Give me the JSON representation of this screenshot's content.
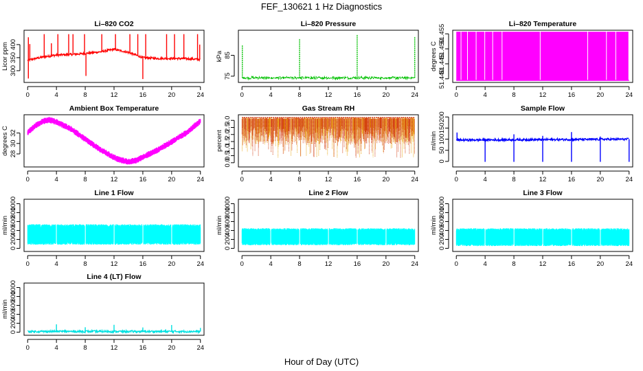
{
  "figure": {
    "title": "FEF_130621  1 Hz Diagnostics",
    "xlabel": "Hour of Day (UTC)"
  },
  "chart_data": [
    {
      "type": "line",
      "title": "Li–820 CO2",
      "ylabel": "Licor ppm",
      "color": "#ff0000",
      "xlim": [
        -0.5,
        24.5
      ],
      "ylim": [
        255,
        455
      ],
      "xticks": [
        0,
        4,
        8,
        12,
        16,
        20,
        24
      ],
      "yticks": [
        300,
        350,
        400
      ],
      "tick_labels_y": [
        "300",
        "350",
        "400"
      ],
      "baseline": {
        "x": [
          0,
          2,
          4,
          6,
          8,
          10,
          12,
          14,
          16,
          18,
          20,
          22,
          24
        ],
        "y": [
          340,
          352,
          360,
          362,
          366,
          372,
          382,
          370,
          350,
          347,
          347,
          346,
          343
        ]
      },
      "spikes_up": [
        {
          "x": 0.1,
          "y": 428
        },
        {
          "x": 0.3,
          "y": 402
        },
        {
          "x": 2.3,
          "y": 440
        },
        {
          "x": 3.3,
          "y": 405
        },
        {
          "x": 4.2,
          "y": 440
        },
        {
          "x": 5.7,
          "y": 440
        },
        {
          "x": 6.3,
          "y": 440
        },
        {
          "x": 7.9,
          "y": 440
        },
        {
          "x": 10.3,
          "y": 440
        },
        {
          "x": 12.2,
          "y": 440
        },
        {
          "x": 14.2,
          "y": 440
        },
        {
          "x": 15.3,
          "y": 440
        },
        {
          "x": 16.4,
          "y": 440
        },
        {
          "x": 19.3,
          "y": 440
        },
        {
          "x": 20.4,
          "y": 440
        },
        {
          "x": 21.7,
          "y": 440
        },
        {
          "x": 23.6,
          "y": 440
        },
        {
          "x": 23.9,
          "y": 400
        }
      ],
      "spikes_down": [
        {
          "x": 0.1,
          "y": 270
        },
        {
          "x": 8.1,
          "y": 280
        },
        {
          "x": 16.0,
          "y": 268
        }
      ]
    },
    {
      "type": "line",
      "title": "Li–820 Pressure",
      "ylabel": "kPa",
      "color": "#00c000",
      "xlim": [
        -0.5,
        24.5
      ],
      "ylim": [
        72,
        97
      ],
      "xticks": [
        0,
        4,
        8,
        12,
        16,
        20,
        24
      ],
      "yticks": [
        75,
        85
      ],
      "tick_labels_y": [
        "75",
        "85"
      ],
      "baseline": {
        "x": [
          0,
          24
        ],
        "y": [
          74.2,
          74.2
        ]
      },
      "spikes_up": [
        {
          "x": 0.05,
          "y": 90
        },
        {
          "x": 8.0,
          "y": 93
        },
        {
          "x": 16.0,
          "y": 95
        },
        {
          "x": 24.0,
          "y": 94
        }
      ],
      "spikes_down": []
    },
    {
      "type": "line",
      "title": "Li–820 Temperature",
      "ylabel": "degrees C",
      "color": "#ff00ff",
      "xlim": [
        -0.5,
        24.5
      ],
      "ylim": [
        51.4388,
        51.4562
      ],
      "xticks": [
        0,
        4,
        8,
        12,
        16,
        20,
        24
      ],
      "yticks": [
        51.44,
        51.445,
        51.45,
        51.455
      ],
      "tick_labels_y": [
        "51.440",
        "51.445",
        "51.450",
        "51.455"
      ],
      "low_value": 51.4395,
      "high_value": 51.4557,
      "x_start": 0.0,
      "x_end": 24.0,
      "gaps": [
        0.7,
        1.6,
        2.8,
        4.0,
        5.1,
        6.4,
        11.7,
        18.3,
        20.9,
        22.2
      ]
    },
    {
      "type": "line",
      "title": "Ambient Box Temperature",
      "ylabel": "degrees C",
      "color": "#ff00ff",
      "xlim": [
        -0.5,
        24.5
      ],
      "ylim": [
        25.5,
        35.5
      ],
      "xticks": [
        0,
        4,
        8,
        12,
        16,
        20,
        24
      ],
      "yticks": [
        28,
        30,
        32
      ],
      "tick_labels_y": [
        "28",
        "30",
        "32"
      ],
      "curve": {
        "x": [
          0,
          1,
          2,
          3,
          4,
          6,
          8,
          10,
          12,
          13,
          14,
          15,
          16,
          18,
          20,
          22,
          24
        ],
        "y": [
          32.1,
          33.3,
          34.2,
          34.5,
          34.1,
          32.8,
          30.8,
          28.9,
          27.3,
          26.8,
          26.5,
          26.7,
          27.4,
          28.7,
          30.3,
          32.0,
          34.3
        ]
      },
      "noise_band": 0.6
    },
    {
      "type": "scatter",
      "title": "Gas Stream RH",
      "ylabel": "percent",
      "color": "#e8a000",
      "colors": [
        "#e8a000",
        "#d03000"
      ],
      "xlim": [
        -0.5,
        24.5
      ],
      "ylim": [
        -0.3,
        3.4
      ],
      "xticks": [
        0,
        4,
        8,
        12,
        16,
        20,
        24
      ],
      "yticks": [
        0.0,
        0.5,
        1.0,
        1.5,
        2.0,
        2.5,
        3.0
      ],
      "tick_labels_y": [
        "0.0",
        "0.5",
        "1.0",
        "1.5",
        "2.0",
        "2.5",
        "3.0"
      ],
      "x_start": 0.0,
      "x_end": 24.0,
      "band": [
        0.3,
        3.2
      ]
    },
    {
      "type": "line",
      "title": "Sample Flow",
      "ylabel": "ml/min",
      "color": "#0000ff",
      "xlim": [
        -0.5,
        24.5
      ],
      "ylim": [
        -25,
        210
      ],
      "xticks": [
        0,
        4,
        8,
        12,
        16,
        20,
        24
      ],
      "yticks": [
        0,
        50,
        100,
        150,
        200
      ],
      "tick_labels_y": [
        "0",
        "50",
        "100",
        "150",
        "200"
      ],
      "baseline": {
        "x": [
          0,
          24
        ],
        "y": [
          96,
          100
        ]
      },
      "spikes_up": [
        {
          "x": 0.1,
          "y": 130
        },
        {
          "x": 8.0,
          "y": 122
        },
        {
          "x": 16.0,
          "y": 132
        },
        {
          "x": 12.0,
          "y": 115
        },
        {
          "x": 20.0,
          "y": 112
        }
      ],
      "spikes_down": [
        {
          "x": 4.0,
          "y": -2
        },
        {
          "x": 8.0,
          "y": -2
        },
        {
          "x": 12.0,
          "y": -2
        },
        {
          "x": 16.0,
          "y": -2
        },
        {
          "x": 20.0,
          "y": -2
        },
        {
          "x": 24.0,
          "y": -2
        }
      ]
    },
    {
      "type": "area",
      "title": "Line 1 Flow",
      "ylabel": "ml/min",
      "color": "#00ffff",
      "xlim": [
        -0.5,
        24.5
      ],
      "ylim": [
        -70,
        1100
      ],
      "xticks": [
        0,
        4,
        8,
        12,
        16,
        20,
        24
      ],
      "yticks": [
        0,
        200,
        400,
        600,
        800,
        1000
      ],
      "tick_labels_y": [
        "0",
        "200",
        "400",
        "600",
        "800",
        "1000"
      ],
      "x_start": 0.0,
      "x_end": 24.0,
      "low": 80,
      "high": 540,
      "gaps": [
        4.0,
        8.0,
        12.0,
        16.0,
        20.0
      ]
    },
    {
      "type": "area",
      "title": "Line 2 Flow",
      "ylabel": "ml/min",
      "color": "#00ffff",
      "xlim": [
        -0.5,
        24.5
      ],
      "ylim": [
        -70,
        1100
      ],
      "xticks": [
        0,
        4,
        8,
        12,
        16,
        20,
        24
      ],
      "yticks": [
        0,
        200,
        400,
        600,
        800,
        1000
      ],
      "tick_labels_y": [
        "0",
        "200",
        "400",
        "600",
        "800",
        "1000"
      ],
      "x_start": 0.0,
      "x_end": 24.0,
      "low": 70,
      "high": 450,
      "gaps": [
        4.0,
        8.0,
        12.0,
        16.0,
        20.0
      ]
    },
    {
      "type": "area",
      "title": "Line 3 Flow",
      "ylabel": "ml/min",
      "color": "#00ffff",
      "xlim": [
        -0.5,
        24.5
      ],
      "ylim": [
        -70,
        1100
      ],
      "xticks": [
        0,
        4,
        8,
        12,
        16,
        20,
        24
      ],
      "yticks": [
        0,
        200,
        400,
        600,
        800,
        1000
      ],
      "tick_labels_y": [
        "0",
        "200",
        "400",
        "600",
        "800",
        "1000"
      ],
      "x_start": 0.0,
      "x_end": 24.0,
      "low": 50,
      "high": 450,
      "gaps": [
        4.0,
        8.0,
        12.0,
        16.0,
        20.0
      ]
    },
    {
      "type": "line",
      "title": "Line 4 (LT) Flow",
      "ylabel": "ml/min",
      "color": "#00e0e0",
      "xlim": [
        -0.5,
        24.5
      ],
      "ylim": [
        -70,
        1100
      ],
      "xticks": [
        0,
        4,
        8,
        12,
        16,
        20,
        24
      ],
      "yticks": [
        0,
        200,
        400,
        600,
        800,
        1000
      ],
      "tick_labels_y": [
        "0",
        "200",
        "400",
        "600",
        "800",
        "1000"
      ],
      "baseline": {
        "x": [
          0,
          24
        ],
        "y": [
          15,
          15
        ]
      },
      "spikes_up": [
        {
          "x": 4.0,
          "y": 175
        },
        {
          "x": 8.0,
          "y": 110
        },
        {
          "x": 12.0,
          "y": 165
        },
        {
          "x": 16.0,
          "y": 105
        },
        {
          "x": 20.0,
          "y": 160
        },
        {
          "x": 24.0,
          "y": 95
        }
      ],
      "spikes_down": []
    }
  ]
}
